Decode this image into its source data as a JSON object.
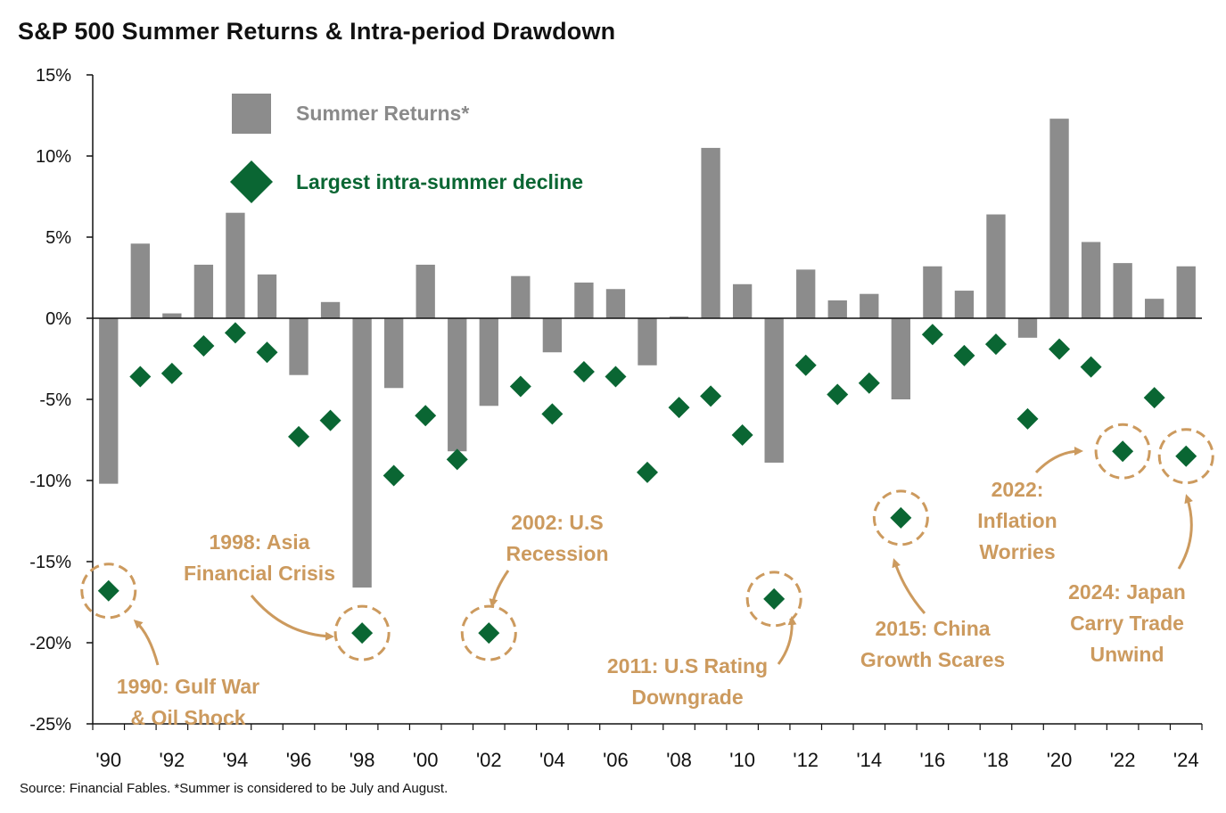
{
  "title": "S&P 500 Summer Returns & Intra-period Drawdown",
  "source": "Source: Financial Fables. *Summer is considered to be July and August.",
  "colors": {
    "bar": "#8c8c8c",
    "diamond": "#0a6633",
    "annotation": "#cc9a5e",
    "axis": "#111111"
  },
  "legend": {
    "bars_label": "Summer Returns*",
    "diamonds_label": "Largest intra-summer decline"
  },
  "chart_data": {
    "type": "bar",
    "title": "S&P 500 Summer Returns & Intra-period Drawdown",
    "xlabel": "",
    "ylabel": "",
    "ylim": [
      -25,
      15
    ],
    "y_ticks": [
      15,
      10,
      5,
      0,
      -5,
      -10,
      -15,
      -20,
      -25
    ],
    "y_tick_labels": [
      "15%",
      "10%",
      "5%",
      "0%",
      "-5%",
      "-10%",
      "-15%",
      "-20%",
      "-25%"
    ],
    "years": [
      1990,
      1991,
      1992,
      1993,
      1994,
      1995,
      1996,
      1997,
      1998,
      1999,
      2000,
      2001,
      2002,
      2003,
      2004,
      2005,
      2006,
      2007,
      2008,
      2009,
      2010,
      2011,
      2012,
      2013,
      2014,
      2015,
      2016,
      2017,
      2018,
      2019,
      2020,
      2021,
      2022,
      2023,
      2024
    ],
    "x_tick_labels": [
      {
        "year": 1990,
        "label": "'90"
      },
      {
        "year": 1992,
        "label": "'92"
      },
      {
        "year": 1994,
        "label": "'94"
      },
      {
        "year": 1996,
        "label": "'96"
      },
      {
        "year": 1998,
        "label": "'98"
      },
      {
        "year": 2000,
        "label": "'00"
      },
      {
        "year": 2002,
        "label": "'02"
      },
      {
        "year": 2004,
        "label": "'04"
      },
      {
        "year": 2006,
        "label": "'06"
      },
      {
        "year": 2008,
        "label": "'08"
      },
      {
        "year": 2010,
        "label": "'10"
      },
      {
        "year": 2012,
        "label": "'12"
      },
      {
        "year": 2014,
        "label": "'14"
      },
      {
        "year": 2016,
        "label": "'16"
      },
      {
        "year": 2018,
        "label": "'18"
      },
      {
        "year": 2020,
        "label": "'20"
      },
      {
        "year": 2022,
        "label": "'22"
      },
      {
        "year": 2024,
        "label": "'24"
      }
    ],
    "series": [
      {
        "name": "Summer Returns*",
        "type": "bar",
        "values": [
          -10.2,
          4.6,
          0.3,
          3.3,
          6.5,
          2.7,
          -3.5,
          1.0,
          -16.6,
          -4.3,
          3.3,
          -8.2,
          -5.4,
          2.6,
          -2.1,
          2.2,
          1.8,
          -2.9,
          0.1,
          10.5,
          2.1,
          -8.9,
          3.0,
          1.1,
          1.5,
          -5.0,
          3.2,
          1.7,
          6.4,
          -1.2,
          12.3,
          4.7,
          3.4,
          1.2,
          3.2
        ]
      },
      {
        "name": "Largest intra-summer decline",
        "type": "scatter",
        "marker": "diamond",
        "values": [
          -16.8,
          -3.6,
          -3.4,
          -1.7,
          -0.9,
          -2.1,
          -7.3,
          -6.3,
          -19.4,
          -9.7,
          -6.0,
          -8.7,
          -19.4,
          -4.2,
          -5.9,
          -3.3,
          -3.6,
          -9.5,
          -5.5,
          -4.8,
          -7.2,
          -17.3,
          -2.9,
          -4.7,
          -4.0,
          -12.3,
          -1.0,
          -2.3,
          -1.6,
          -6.2,
          -1.9,
          -3.0,
          -8.2,
          -4.9,
          -8.5
        ]
      }
    ],
    "annotations": [
      {
        "year": 1990,
        "lines": [
          "1990: Gulf War",
          "& Oil Shock"
        ]
      },
      {
        "year": 1998,
        "lines": [
          "1998: Asia",
          "Financial Crisis"
        ]
      },
      {
        "year": 2002,
        "lines": [
          "2002: U.S",
          "Recession"
        ]
      },
      {
        "year": 2011,
        "lines": [
          "2011: U.S Rating",
          "Downgrade"
        ]
      },
      {
        "year": 2015,
        "lines": [
          "2015: China",
          "Growth Scares"
        ]
      },
      {
        "year": 2022,
        "lines": [
          "2022:",
          "Inflation",
          "Worries"
        ]
      },
      {
        "year": 2024,
        "lines": [
          "2024: Japan",
          "Carry Trade",
          "Unwind"
        ]
      }
    ]
  }
}
